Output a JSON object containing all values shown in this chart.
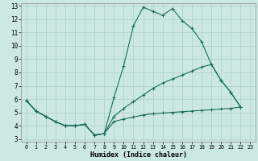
{
  "xlabel": "Humidex (Indice chaleur)",
  "bg_color": "#cce8e4",
  "grid_color": "#aacfca",
  "line_color": "#1a6b5e",
  "xlim": [
    -0.5,
    23.5
  ],
  "ylim": [
    2.8,
    13.2
  ],
  "xticks": [
    0,
    1,
    2,
    3,
    4,
    5,
    6,
    7,
    8,
    9,
    10,
    11,
    12,
    13,
    14,
    15,
    16,
    17,
    18,
    19,
    20,
    21,
    22,
    23
  ],
  "yticks": [
    3,
    4,
    5,
    6,
    7,
    8,
    9,
    10,
    11,
    12,
    13
  ],
  "line1_x": [
    0,
    1,
    2,
    3,
    4,
    5,
    6,
    7,
    8,
    9,
    10,
    11,
    12,
    13,
    14,
    15,
    16,
    17,
    18,
    19,
    20,
    21,
    22
  ],
  "line1_y": [
    5.9,
    5.1,
    4.7,
    4.3,
    4.0,
    4.0,
    4.1,
    3.3,
    3.4,
    6.1,
    8.5,
    11.5,
    12.9,
    12.6,
    12.3,
    12.8,
    11.9,
    11.3,
    10.3,
    8.6,
    7.4,
    6.5,
    5.4
  ],
  "line2_x": [
    0,
    1,
    2,
    3,
    4,
    5,
    6,
    7,
    8,
    9,
    10,
    11,
    12,
    13,
    14,
    15,
    16,
    17,
    18,
    19,
    20,
    21,
    22
  ],
  "line2_y": [
    5.9,
    5.1,
    4.7,
    4.3,
    4.0,
    4.0,
    4.1,
    3.3,
    3.4,
    4.7,
    5.3,
    5.8,
    6.3,
    6.8,
    7.2,
    7.5,
    7.8,
    8.1,
    8.4,
    8.6,
    7.4,
    6.5,
    5.4
  ],
  "line3_x": [
    0,
    1,
    2,
    3,
    4,
    5,
    6,
    7,
    8,
    9,
    10,
    11,
    12,
    13,
    14,
    15,
    16,
    17,
    18,
    19,
    20,
    21,
    22
  ],
  "line3_y": [
    5.9,
    5.1,
    4.7,
    4.3,
    4.0,
    4.0,
    4.1,
    3.3,
    3.4,
    4.3,
    4.5,
    4.65,
    4.8,
    4.9,
    4.95,
    5.0,
    5.05,
    5.1,
    5.15,
    5.2,
    5.25,
    5.3,
    5.4
  ]
}
